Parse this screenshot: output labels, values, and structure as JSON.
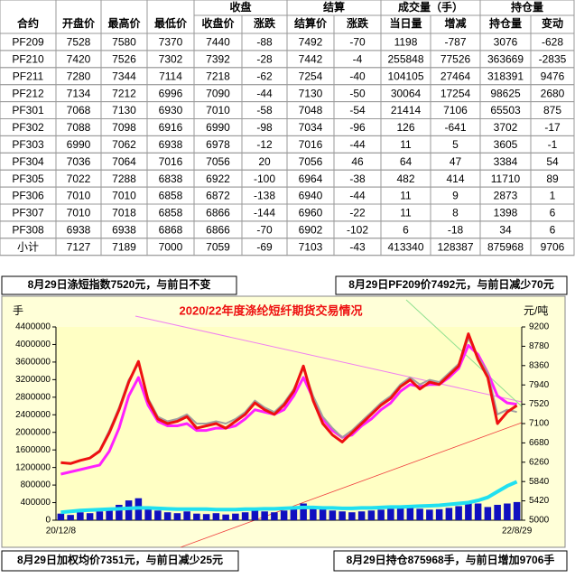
{
  "table": {
    "header_groups": [
      "收盘",
      "结算",
      "成交量（手）",
      "持仓量"
    ],
    "columns": [
      "合约",
      "开盘价",
      "最高价",
      "最低价",
      "收盘价",
      "涨跌",
      "结算价",
      "涨跌",
      "当日量",
      "增减",
      "持仓量",
      "变动"
    ],
    "rows": [
      [
        "PF209",
        7528,
        7580,
        7370,
        7440,
        -88,
        7492,
        -70,
        1198,
        -787,
        3076,
        -628
      ],
      [
        "PF210",
        7420,
        7526,
        7302,
        7392,
        -28,
        7442,
        -4,
        255848,
        77526,
        363669,
        -2835
      ],
      [
        "PF211",
        7280,
        7344,
        7114,
        7218,
        -62,
        7254,
        -40,
        104105,
        27464,
        318391,
        9476
      ],
      [
        "PF212",
        7134,
        7212,
        6996,
        7090,
        -44,
        7130,
        -50,
        30064,
        17254,
        98625,
        2680
      ],
      [
        "PF301",
        7068,
        7130,
        6930,
        7010,
        -58,
        7048,
        -54,
        21414,
        7106,
        65503,
        875
      ],
      [
        "PF302",
        7088,
        7098,
        6916,
        6990,
        -98,
        7034,
        -96,
        126,
        -641,
        3702,
        -17
      ],
      [
        "PF303",
        6990,
        7062,
        6938,
        6978,
        -12,
        7016,
        -44,
        11,
        5,
        3605,
        -1
      ],
      [
        "PF304",
        7036,
        7064,
        7016,
        7056,
        20,
        7056,
        46,
        64,
        47,
        3384,
        54
      ],
      [
        "PF305",
        7022,
        7288,
        6838,
        6922,
        -100,
        6964,
        -38,
        482,
        414,
        11710,
        89
      ],
      [
        "PF306",
        7010,
        7010,
        6858,
        6872,
        -138,
        6940,
        -44,
        11,
        9,
        2873,
        1
      ],
      [
        "PF307",
        7010,
        7018,
        6858,
        6866,
        -144,
        6960,
        -22,
        11,
        8,
        1398,
        6
      ],
      [
        "PF308",
        6938,
        6938,
        6868,
        6866,
        -70,
        6902,
        -102,
        6,
        -18,
        34,
        6
      ],
      [
        "小计",
        7127,
        7189,
        7000,
        7059,
        -69,
        7103,
        -43,
        413340,
        128387,
        875968,
        9706
      ]
    ]
  },
  "notes": {
    "top_left": "8月29日涤短指数7520元，与前日不变",
    "top_right": "8月29日PF209价7492元，与前日减少70元",
    "bottom_left": "8月29日加权均价7351元，与前日减少25元",
    "bottom_right": "8月29日持仓875968手，与前日增加9706手"
  },
  "chart_data": {
    "type": "line",
    "title": "2020/22年度涤纶短纤期货交易情况",
    "y_label": "手",
    "y2_label": "元/吨",
    "categories": [
      "20/12/8",
      null,
      null,
      null,
      null,
      null,
      null,
      null,
      null,
      null,
      null,
      null,
      null,
      null,
      null,
      null,
      null,
      null,
      null,
      null,
      null,
      null,
      null,
      null,
      null,
      null,
      null,
      null,
      null,
      null,
      null,
      null,
      null,
      null,
      null,
      null,
      null,
      null,
      null,
      null,
      null,
      null,
      null,
      null,
      null,
      null,
      null,
      "22/8/29"
    ],
    "ylim": [
      0,
      4400000
    ],
    "yticks": [
      0,
      400000,
      800000,
      1200000,
      1600000,
      2000000,
      2400000,
      2800000,
      3200000,
      3600000,
      4000000,
      4400000
    ],
    "y2lim": [
      5000,
      9200
    ],
    "y2ticks": [
      5000,
      5420,
      5840,
      6260,
      6680,
      7100,
      7520,
      7940,
      8360,
      8780,
      9200
    ],
    "series": [
      {
        "name": "成交量",
        "type": "bar",
        "color": "#1010c0",
        "values": [
          150000,
          120000,
          180000,
          160000,
          200000,
          250000,
          350000,
          450000,
          500000,
          300000,
          220000,
          180000,
          160000,
          200000,
          150000,
          140000,
          160000,
          130000,
          150000,
          180000,
          220000,
          200000,
          180000,
          220000,
          300000,
          380000,
          280000,
          260000,
          220000,
          200000,
          180000,
          200000,
          220000,
          240000,
          260000,
          280000,
          300000,
          260000,
          240000,
          250000,
          280000,
          320000,
          420000,
          380000,
          300000,
          350000,
          380000,
          413340
        ]
      },
      {
        "name": "持仓量",
        "type": "line",
        "color": "#20e0f0",
        "values": [
          180000,
          200000,
          220000,
          230000,
          240000,
          250000,
          260000,
          270000,
          280000,
          280000,
          270000,
          260000,
          250000,
          250000,
          250000,
          250000,
          240000,
          240000,
          240000,
          250000,
          250000,
          260000,
          260000,
          270000,
          280000,
          290000,
          290000,
          280000,
          280000,
          270000,
          270000,
          280000,
          280000,
          290000,
          300000,
          300000,
          310000,
          320000,
          330000,
          340000,
          360000,
          380000,
          400000,
          450000,
          520000,
          650000,
          780000,
          875968
        ]
      },
      {
        "name": "涤短指数",
        "type": "line",
        "axis": "y2",
        "color": "#ff20ff",
        "values": [
          6000,
          6050,
          6100,
          6150,
          6200,
          6500,
          7000,
          7700,
          8100,
          7500,
          7150,
          7050,
          7050,
          7100,
          6950,
          6950,
          7000,
          7000,
          7050,
          7200,
          7400,
          7350,
          7300,
          7400,
          7700,
          8100,
          7650,
          7200,
          6950,
          6800,
          6850,
          7050,
          7200,
          7400,
          7550,
          7800,
          7950,
          7900,
          7950,
          7950,
          8100,
          8300,
          8800,
          8600,
          8200,
          7700,
          7550,
          7520
        ]
      },
      {
        "name": "加权均价",
        "type": "line",
        "axis": "y2",
        "color": "#a0a0a0",
        "values": [
          6250,
          6240,
          6300,
          6360,
          6520,
          6950,
          7450,
          8050,
          8400,
          7650,
          7250,
          7150,
          7200,
          7300,
          7100,
          7100,
          7150,
          7100,
          7200,
          7350,
          7600,
          7450,
          7350,
          7550,
          7850,
          8300,
          7700,
          7250,
          7000,
          6800,
          6950,
          7150,
          7350,
          7550,
          7700,
          7950,
          8100,
          7950,
          8050,
          8000,
          8200,
          8400,
          8950,
          8550,
          8200,
          7300,
          7400,
          7351
        ]
      },
      {
        "name": "PF209",
        "type": "line",
        "axis": "y2",
        "color": "#ee1010",
        "values": [
          6250,
          6230,
          6300,
          6350,
          6500,
          6900,
          7400,
          8000,
          8450,
          7600,
          7200,
          7100,
          7150,
          7250,
          7000,
          7050,
          7100,
          7000,
          7150,
          7300,
          7550,
          7400,
          7300,
          7500,
          7800,
          8350,
          7600,
          7100,
          6850,
          6700,
          6900,
          7100,
          7300,
          7500,
          7650,
          7900,
          8050,
          7850,
          8000,
          7950,
          8150,
          8350,
          9050,
          8500,
          8100,
          7100,
          7350,
          7492
        ]
      }
    ]
  }
}
